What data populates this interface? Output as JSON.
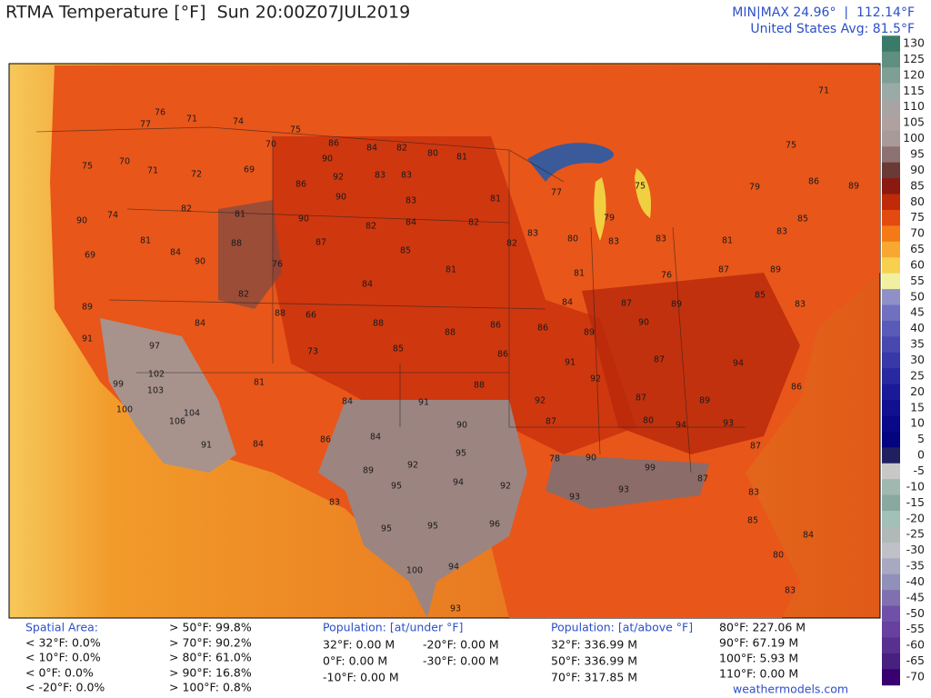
{
  "header": {
    "title": "RTMA Temperature [°F]  Sun 20:00Z07JUL2019",
    "minmax": "MIN|MAX 24.96°  |  112.14°F",
    "average": "United States Avg: 81.5°F"
  },
  "map": {
    "labels": [
      77,
      76,
      71,
      74,
      75,
      70,
      86,
      84,
      82,
      80,
      81,
      90,
      92,
      83,
      83,
      75,
      70,
      71,
      72,
      69,
      86,
      90,
      83,
      81,
      90,
      74,
      82,
      81,
      90,
      82,
      84,
      82,
      81,
      84,
      88,
      87,
      85,
      82,
      69,
      90,
      76,
      84,
      81,
      89,
      82,
      88,
      66,
      88,
      88,
      86,
      84,
      91,
      97,
      73,
      85,
      86,
      102,
      99,
      103,
      81,
      84,
      91,
      88,
      92,
      100,
      106,
      104,
      90,
      91,
      84,
      86,
      84,
      95,
      89,
      92,
      95,
      94,
      92,
      87,
      83,
      95,
      95,
      96,
      100,
      94,
      93,
      78,
      90,
      99,
      93,
      93,
      87,
      83,
      87,
      93,
      85,
      80,
      84,
      83,
      94,
      80,
      87,
      89,
      92,
      87,
      94,
      86,
      89,
      90,
      89,
      85,
      83,
      86,
      91,
      84,
      87,
      81,
      76,
      87,
      89,
      83,
      83,
      81,
      83,
      85,
      79,
      86,
      75,
      71,
      89,
      77,
      79,
      75,
      80,
      83
    ]
  },
  "colorbar": {
    "ticks": [
      130,
      125,
      120,
      115,
      110,
      105,
      100,
      95,
      90,
      85,
      80,
      75,
      70,
      65,
      60,
      55,
      50,
      45,
      40,
      35,
      30,
      25,
      20,
      15,
      10,
      5,
      0,
      -5,
      -10,
      -15,
      -20,
      -25,
      -30,
      -35,
      -40,
      -45,
      -50,
      -55,
      -60,
      -65,
      -70
    ],
    "colors": [
      "#3a7a68",
      "#5e8f80",
      "#7f9f95",
      "#9aaaa6",
      "#a8a4a4",
      "#b0a0a0",
      "#a89a98",
      "#8c7270",
      "#6a3a36",
      "#8a1a10",
      "#c02a08",
      "#e44a10",
      "#f47a18",
      "#f8a830",
      "#f8d050",
      "#f0f0a0",
      "#9090c8",
      "#7070c0",
      "#5a5ab8",
      "#4848b0",
      "#3838a8",
      "#2828a0",
      "#1a1a98",
      "#101090",
      "#080888",
      "#040480",
      "#202060",
      "#c8c8c8",
      "#a0b8b0",
      "#88a8a0",
      "#a0c0b8",
      "#b0b8b8",
      "#c0c0c8",
      "#a8a8c0",
      "#9090b8",
      "#8070b0",
      "#7050a8",
      "#6840a0",
      "#583090",
      "#482080",
      "#380070"
    ]
  },
  "footer": {
    "spatial_title": "Spatial Area:",
    "spatial_below": [
      "< 32°F: 0.0%",
      "< 10°F: 0.0%",
      "< 0°F: 0.0%",
      "< -20°F: 0.0%"
    ],
    "spatial_above": [
      "> 50°F: 99.8%",
      "> 70°F: 90.2%",
      "> 80°F: 61.0%",
      "> 90°F: 16.8%",
      "> 100°F: 0.8%"
    ],
    "pop_under_title": "Population: [at/under °F]",
    "pop_under": [
      "32°F: 0.00 M",
      "0°F: 0.00 M",
      "-10°F: 0.00 M",
      "-20°F: 0.00 M",
      "-30°F: 0.00 M"
    ],
    "pop_above_title": "Population: [at/above °F]",
    "pop_above": [
      "32°F: 336.99 M",
      "50°F: 336.99 M",
      "70°F: 317.85 M",
      "80°F: 227.06 M",
      "90°F: 67.19 M",
      "100°F: 5.93 M",
      "110°F: 0.00 M"
    ],
    "credit": "weathermodels.com"
  }
}
